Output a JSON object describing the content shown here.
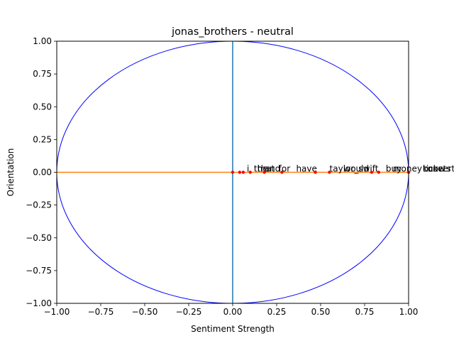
{
  "chart_data": {
    "type": "scatter",
    "title": "jonas_brothers - neutral",
    "xlabel": "Sentiment Strength",
    "ylabel": "Orientation",
    "xlim": [
      -1.0,
      1.0
    ],
    "ylim": [
      -1.0,
      1.0
    ],
    "xticks": [
      "−1.00",
      "−0.75",
      "−0.50",
      "−0.25",
      "0.00",
      "0.25",
      "0.50",
      "0.75",
      "1.00"
    ],
    "yticks": [
      "−1.00",
      "−0.75",
      "−0.50",
      "−0.25",
      "0.00",
      "0.25",
      "0.50",
      "0.75",
      "1.00"
    ],
    "grid": false,
    "circle": {
      "center": [
        0,
        0
      ],
      "radius": 1,
      "color": "#0000ff"
    },
    "vertical_line": {
      "x": 0,
      "color": "#1f77b4"
    },
    "horizontal_line": {
      "y": 0,
      "x_range": [
        -1,
        1
      ],
      "color": "#ff7f0e"
    },
    "point_color": "#ff0000",
    "points": [
      {
        "label": "i",
        "x": 0.0,
        "y": 0.0
      },
      {
        "label": "the",
        "x": 0.04,
        "y": 0.0
      },
      {
        "label": "that",
        "x": 0.06,
        "y": 0.0
      },
      {
        "label": "and",
        "x": 0.1,
        "y": 0.0
      },
      {
        "label": "for",
        "x": 0.18,
        "y": 0.0
      },
      {
        "label": "have",
        "x": 0.28,
        "y": 0.0
      },
      {
        "label": "taylor_swift",
        "x": 0.47,
        "y": 0.0
      },
      {
        "label": "would",
        "x": 0.55,
        "y": 0.0
      },
      {
        "label": "buy",
        "x": 0.79,
        "y": 0.0
      },
      {
        "label": "money",
        "x": 0.83,
        "y": 0.0
      },
      {
        "label": "tickets",
        "x": 1.0,
        "y": 0.0
      },
      {
        "label": "know",
        "x": 1.0,
        "y": 0.0
      },
      {
        "label": "concert",
        "x": 1.0,
        "y": 0.0
      }
    ]
  }
}
